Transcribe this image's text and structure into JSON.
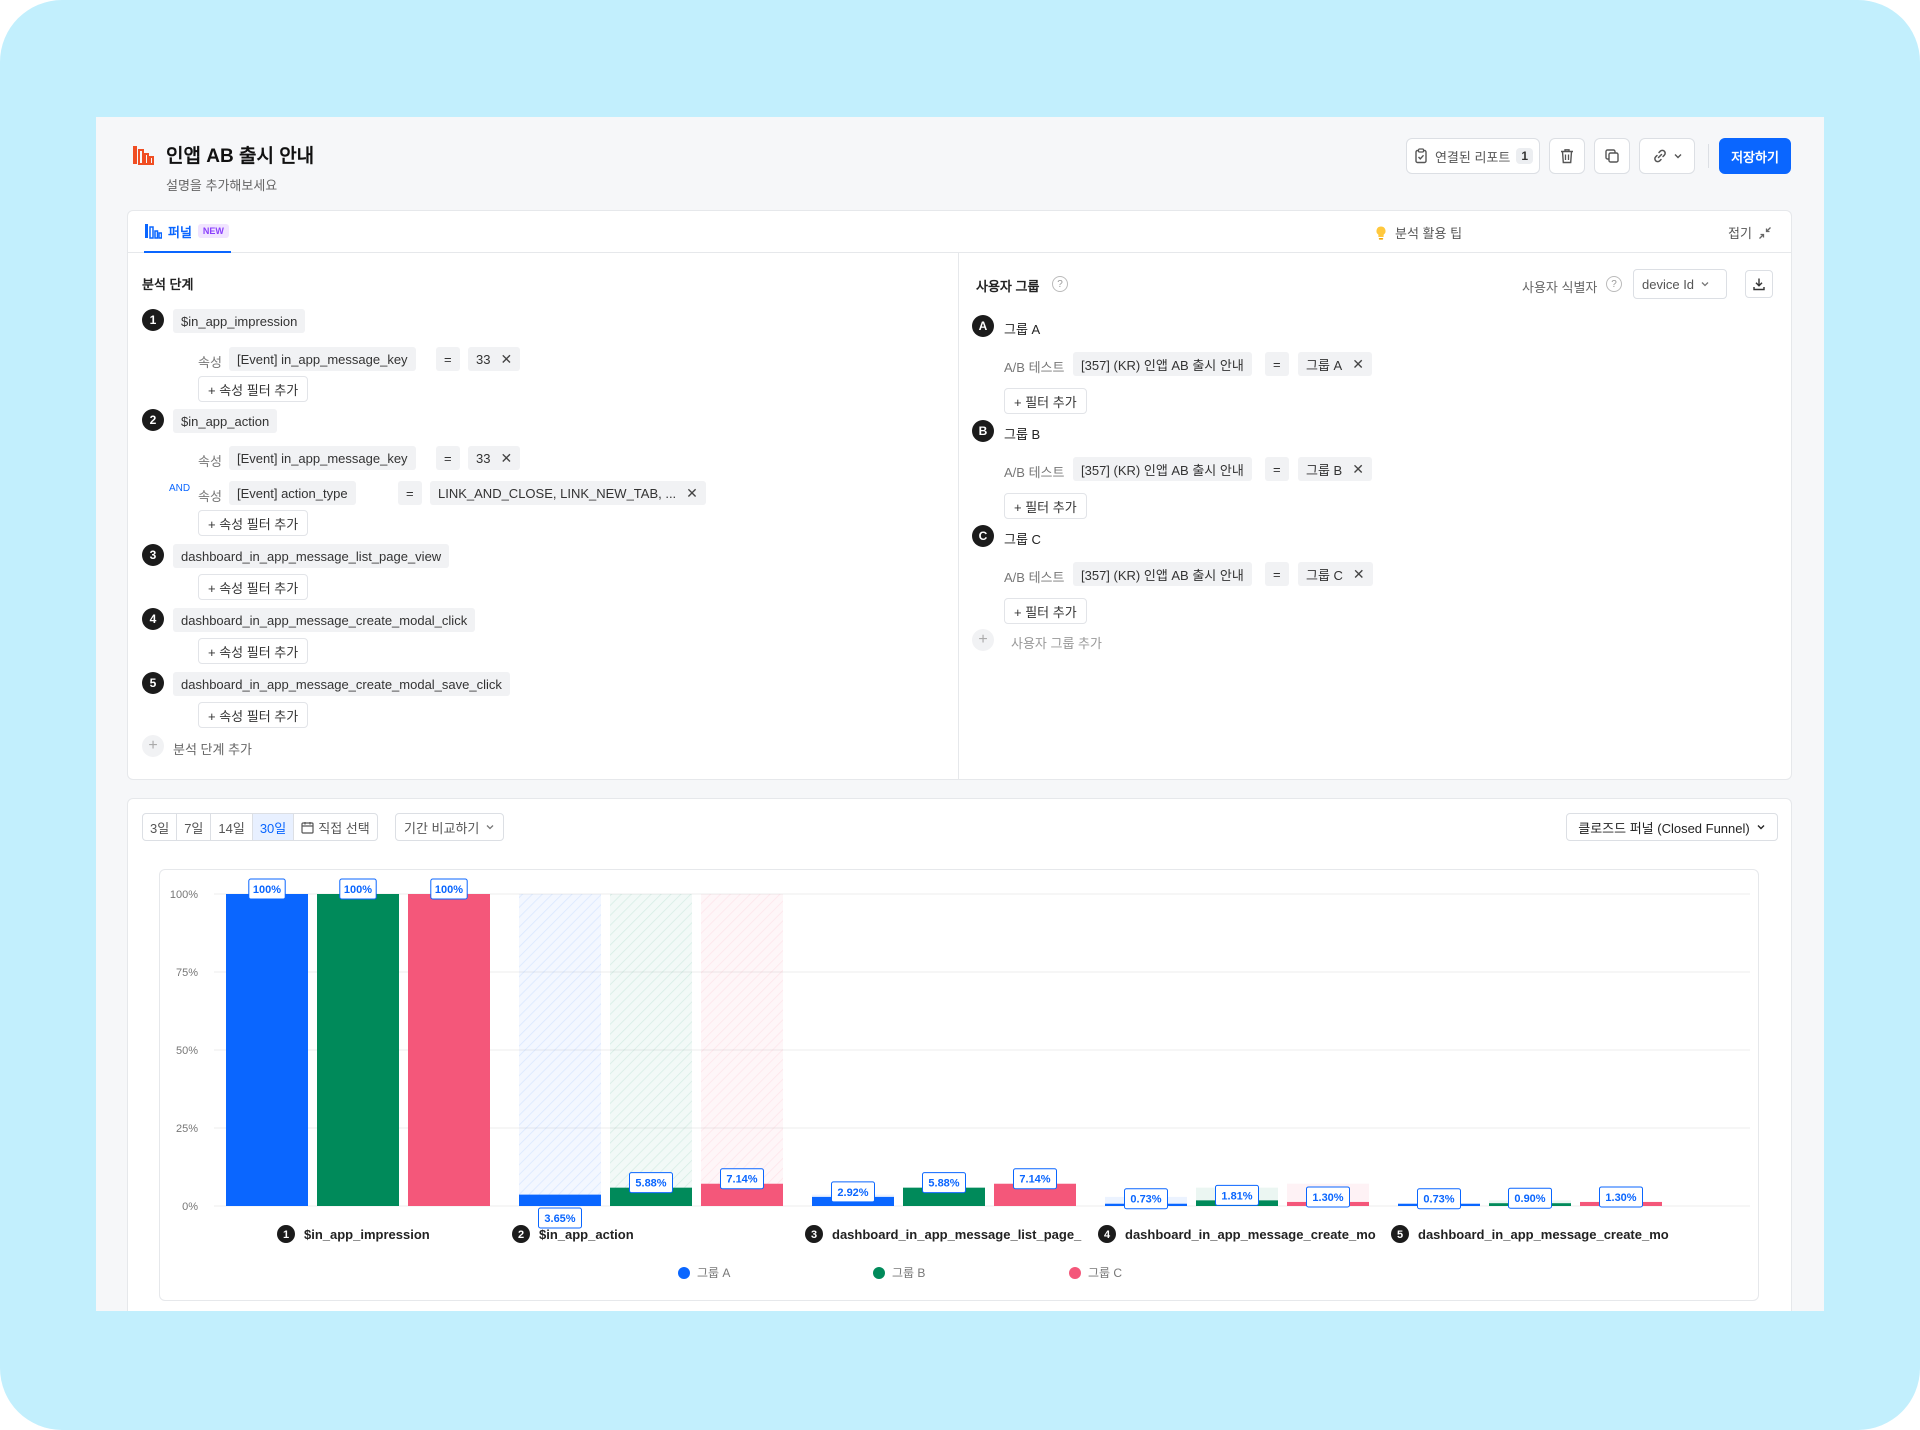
{
  "header": {
    "title": "인앱 AB 출시 안내",
    "description": "설명을 추가해보세요",
    "linked_report_label": "연결된 리포트",
    "linked_report_count": "1",
    "save_label": "저장하기"
  },
  "config": {
    "tab_label": "퍼널",
    "tab_badge": "NEW",
    "tips_label": "분석 활용 팁",
    "collapse_label": "접기",
    "steps_title": "분석 단계",
    "attr_label": "속성",
    "and_label": "AND",
    "add_attr_filter": "+ 속성 필터 추가",
    "add_step": "분석 단계 추가",
    "steps": [
      {
        "num": "1",
        "event": "$in_app_impression",
        "filters": [
          {
            "prop": "[Event] in_app_message_key",
            "op": "=",
            "value": "33"
          }
        ]
      },
      {
        "num": "2",
        "event": "$in_app_action",
        "filters": [
          {
            "prop": "[Event] in_app_message_key",
            "op": "=",
            "value": "33"
          },
          {
            "prop": "[Event] action_type",
            "op": "=",
            "value": "LINK_AND_CLOSE, LINK_NEW_TAB, ..."
          }
        ]
      },
      {
        "num": "3",
        "event": "dashboard_in_app_message_list_page_view",
        "filters": []
      },
      {
        "num": "4",
        "event": "dashboard_in_app_message_create_modal_click",
        "filters": []
      },
      {
        "num": "5",
        "event": "dashboard_in_app_message_create_modal_save_click",
        "filters": []
      }
    ],
    "groups_title": "사용자 그룹",
    "identifier_label": "사용자 식별자",
    "identifier_value": "device Id",
    "abtest_label": "A/B 테스트",
    "add_filter": "+ 필터 추가",
    "add_group": "사용자 그룹 추가",
    "groups": [
      {
        "letter": "A",
        "name": "그룹 A",
        "test": "[357] (KR) 인앱 AB 출시 안내",
        "op": "=",
        "value": "그룹 A"
      },
      {
        "letter": "B",
        "name": "그룹 B",
        "test": "[357] (KR) 인앱 AB 출시 안내",
        "op": "=",
        "value": "그룹 B"
      },
      {
        "letter": "C",
        "name": "그룹 C",
        "test": "[357] (KR) 인앱 AB 출시 안내",
        "op": "=",
        "value": "그룹 C"
      }
    ]
  },
  "controls": {
    "ranges": [
      "3일",
      "7일",
      "14일",
      "30일"
    ],
    "active_range": "30일",
    "custom_range": "직접 선택",
    "compare_label": "기간 비교하기",
    "funnel_type": "클로즈드 퍼널 (Closed Funnel)"
  },
  "chart_data": {
    "type": "bar",
    "categories": [
      "$in_app_impression",
      "$in_app_action",
      "dashboard_in_app_message_list_page_",
      "dashboard_in_app_message_create_mo",
      "dashboard_in_app_message_create_mo"
    ],
    "category_numbers": [
      "1",
      "2",
      "3",
      "4",
      "5"
    ],
    "series": [
      {
        "name": "그룹 A",
        "color": "#0a66ff",
        "values": [
          100,
          3.65,
          2.92,
          0.73,
          0.73
        ],
        "labels": [
          "100%",
          "3.65%",
          "2.92%",
          "0.73%",
          "0.73%"
        ]
      },
      {
        "name": "그룹 B",
        "color": "#008a5a",
        "values": [
          100,
          5.88,
          5.88,
          1.81,
          0.9
        ],
        "labels": [
          "100%",
          "5.88%",
          "5.88%",
          "1.81%",
          "0.90%"
        ]
      },
      {
        "name": "그룹 C",
        "color": "#f4577a",
        "values": [
          100,
          7.14,
          7.14,
          1.3,
          1.3
        ],
        "labels": [
          "100%",
          "7.14%",
          "7.14%",
          "1.30%",
          "1.30%"
        ]
      }
    ],
    "y_ticks": [
      "100%",
      "75%",
      "50%",
      "25%",
      "0%"
    ],
    "ylim": [
      0,
      100
    ],
    "grid": true,
    "legend": "bottom-center"
  }
}
